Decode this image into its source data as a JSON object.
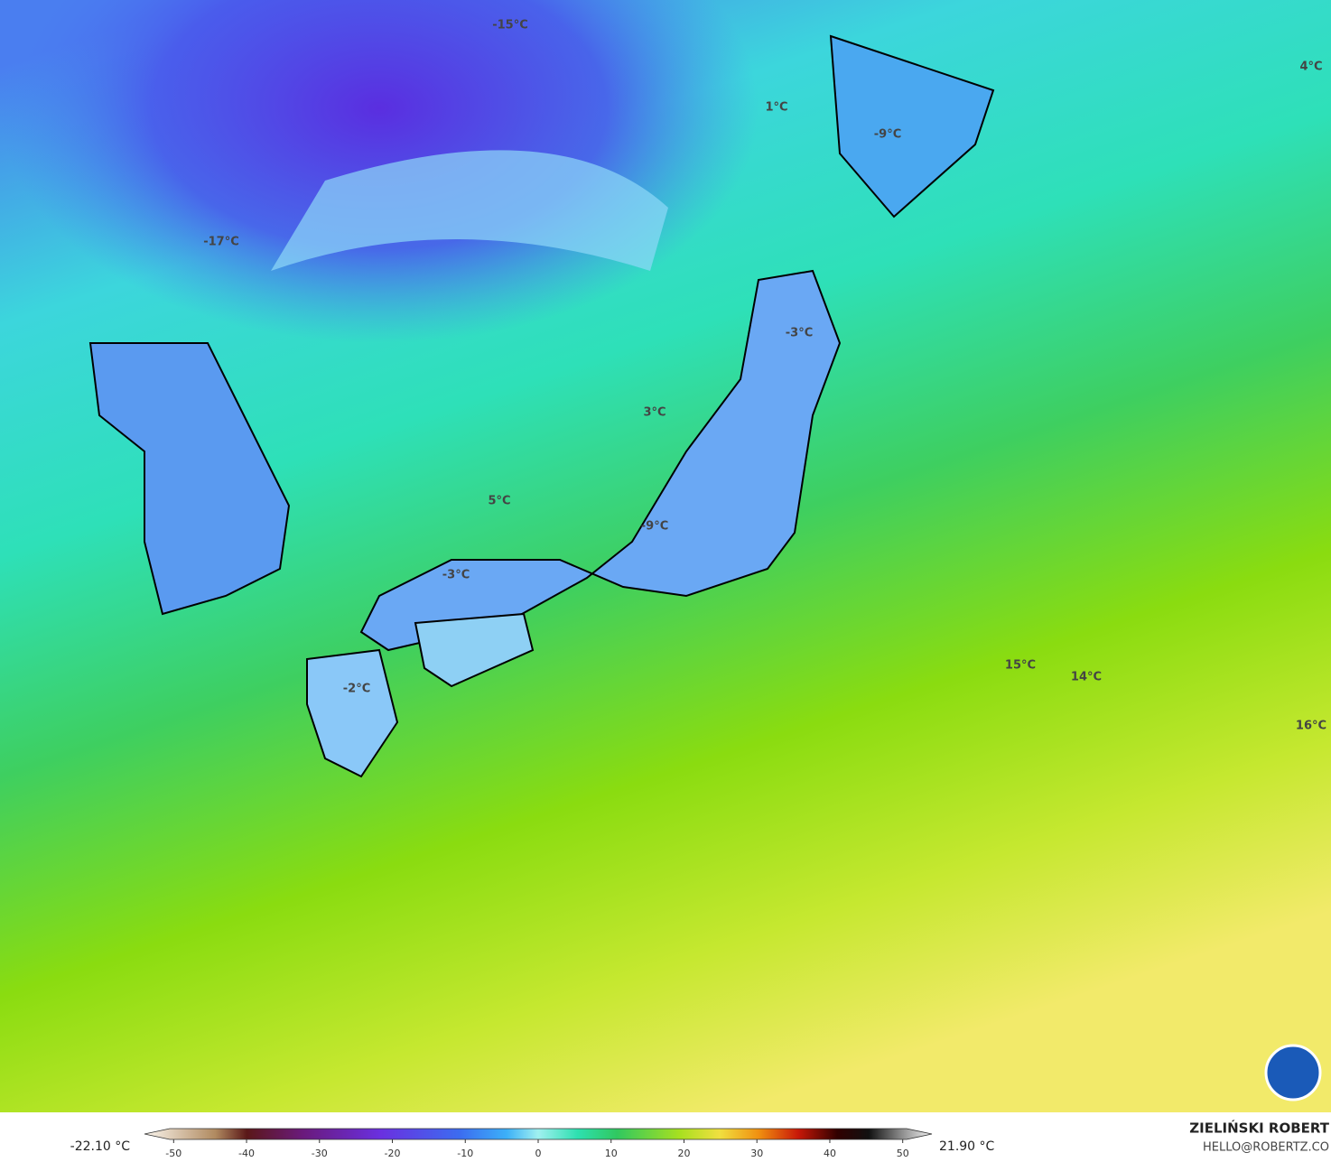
{
  "map": {
    "labels": [
      "-15°C",
      "4°C",
      "1°C",
      "-9°C",
      "-17°C",
      "-3°C",
      "3°C",
      "5°C",
      "-9°C",
      "-3°C",
      "15°C",
      "14°C",
      "-2°C",
      "16°C"
    ]
  },
  "colorbar": {
    "min_label": "-22.10 °C",
    "max_label": "21.90 °C",
    "lim": [
      -54,
      54
    ],
    "ticks": [
      -50,
      -40,
      -30,
      -20,
      -10,
      0,
      10,
      20,
      30,
      40,
      50
    ]
  },
  "credits": {
    "author": "ZIELIŃSKI ROBERT",
    "contact": "HELLO@ROBERTZ.CO"
  }
}
